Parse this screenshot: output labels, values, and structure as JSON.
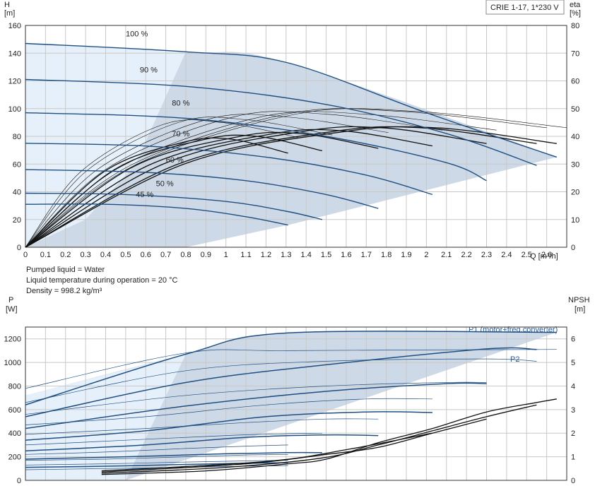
{
  "colors": {
    "zone_dark": "#cdd9e6",
    "zone_light": "#e6f0fa",
    "blue_curve": "#1f4f82",
    "black_curve": "#111111",
    "label_blue": "#2a5a96",
    "grid": "#c8c8c8"
  },
  "chart_data": [
    {
      "type": "line",
      "name": "head-efficiency",
      "model_label": "CRIE 1-17, 1*230 V",
      "ylabel_left": "H",
      "ylabel_left_unit": "[m]",
      "ylabel_right": "eta",
      "ylabel_right_unit": "[%]",
      "xlabel": "Q [m³/h]",
      "xlim": [
        0,
        2.7
      ],
      "ylim": [
        0,
        160
      ],
      "ylim_right": [
        0,
        80
      ],
      "x_ticks": [
        0,
        0.1,
        0.2,
        0.3,
        0.4,
        0.5,
        0.6,
        0.7,
        0.8,
        0.9,
        1.0,
        1.1,
        1.2,
        1.3,
        1.4,
        1.5,
        1.6,
        1.7,
        1.8,
        1.9,
        2.0,
        2.1,
        2.2,
        2.3,
        2.4,
        2.5,
        2.6
      ],
      "y_ticks": [
        0,
        20,
        40,
        60,
        80,
        100,
        120,
        140,
        160
      ],
      "y_ticks_right": [
        0,
        10,
        20,
        30,
        40,
        50,
        60,
        70,
        80
      ],
      "grid": true,
      "operating_zone": {
        "top": [
          [
            0,
            147
          ],
          [
            0.8,
            141
          ],
          [
            1.31,
            133
          ],
          [
            2.65,
            65
          ]
        ],
        "bottom": [
          [
            1.31,
            16
          ],
          [
            2.65,
            65
          ]
        ],
        "light_until_x": 0.8
      },
      "speed_curves": [
        {
          "label": "100 %",
          "points": [
            [
              0,
              147
            ],
            [
              0.8,
              141
            ],
            [
              1.31,
              133
            ],
            [
              2.0,
              97
            ],
            [
              2.65,
              65
            ]
          ]
        },
        {
          "label": "90 %",
          "points": [
            [
              0,
              121
            ],
            [
              0.8,
              116
            ],
            [
              1.5,
              103
            ],
            [
              2.1,
              82
            ],
            [
              2.55,
              59
            ]
          ]
        },
        {
          "label": "80 %",
          "points": [
            [
              0,
              97
            ],
            [
              0.8,
              93
            ],
            [
              1.5,
              80
            ],
            [
              2.1,
              61
            ],
            [
              2.3,
              48
            ]
          ]
        },
        {
          "label": "70 %",
          "points": [
            [
              0,
              75
            ],
            [
              0.6,
              73
            ],
            [
              1.2,
              65
            ],
            [
              1.7,
              52
            ],
            [
              2.03,
              38
            ]
          ]
        },
        {
          "label": "60 %",
          "points": [
            [
              0,
              56
            ],
            [
              0.6,
              54
            ],
            [
              1.1,
              48
            ],
            [
              1.5,
              38
            ],
            [
              1.76,
              28
            ]
          ]
        },
        {
          "label": "50 %",
          "points": [
            [
              0,
              39
            ],
            [
              0.5,
              38
            ],
            [
              1.0,
              33
            ],
            [
              1.3,
              26
            ],
            [
              1.48,
              20
            ]
          ]
        },
        {
          "label": "45 %",
          "points": [
            [
              0,
              31
            ],
            [
              0.4,
              31
            ],
            [
              0.8,
              28
            ],
            [
              1.1,
              22
            ],
            [
              1.31,
              16
            ]
          ]
        }
      ],
      "efficiency_curves_bold_peak_eta": [
        43,
        43,
        43,
        42,
        41,
        40,
        39
      ],
      "efficiency_curves_thin_peak_eta": [
        49,
        49,
        48,
        48,
        47,
        46,
        45
      ]
    },
    {
      "type": "line",
      "name": "power-npsh",
      "info_lines": [
        "Pumped liquid = Water",
        "Liquid temperature during operation = 20 °C",
        "Density = 998.2 kg/m³"
      ],
      "ylabel_left": "P",
      "ylabel_left_unit": "[W]",
      "ylabel_right": "NPSH",
      "ylabel_right_unit": "[m]",
      "ylim": [
        0,
        1300
      ],
      "ylim_right": [
        0,
        6.5
      ],
      "y_ticks": [
        0,
        200,
        400,
        600,
        800,
        1000,
        1200
      ],
      "y_ticks_right": [
        0,
        1,
        2,
        3,
        4,
        5,
        6
      ],
      "grid": true,
      "series_labels": {
        "p1": "P1 (motor+freq.converter)",
        "p2": "P2"
      },
      "p1_curves": [
        [
          [
            0,
            640
          ],
          [
            0.8,
            1070
          ],
          [
            1.31,
            1250
          ],
          [
            2.65,
            1255
          ]
        ],
        [
          [
            0,
            540
          ],
          [
            0.8,
            830
          ],
          [
            1.5,
            980
          ],
          [
            2.3,
            1115
          ],
          [
            2.55,
            1110
          ]
        ],
        [
          [
            0,
            440
          ],
          [
            0.8,
            630
          ],
          [
            1.5,
            755
          ],
          [
            2.1,
            820
          ],
          [
            2.3,
            820
          ]
        ],
        [
          [
            0,
            340
          ],
          [
            0.6,
            420
          ],
          [
            1.2,
            540
          ],
          [
            1.7,
            580
          ],
          [
            2.03,
            575
          ]
        ],
        [
          [
            0,
            250
          ],
          [
            0.6,
            300
          ],
          [
            1.1,
            365
          ],
          [
            1.5,
            385
          ],
          [
            1.76,
            380
          ]
        ],
        [
          [
            0,
            180
          ],
          [
            0.5,
            200
          ],
          [
            1.0,
            225
          ],
          [
            1.3,
            235
          ],
          [
            1.48,
            235
          ]
        ],
        [
          [
            0,
            110
          ],
          [
            0.4,
            120
          ],
          [
            0.8,
            135
          ],
          [
            1.1,
            145
          ],
          [
            1.31,
            150
          ]
        ]
      ],
      "p2_curves": [
        [
          [
            0,
            780
          ],
          [
            0.8,
            1080
          ],
          [
            1.31,
            1100
          ],
          [
            2.65,
            1110
          ]
        ],
        [
          [
            0,
            660
          ],
          [
            0.8,
            930
          ],
          [
            1.5,
            1010
          ],
          [
            2.3,
            1030
          ],
          [
            2.55,
            1010
          ]
        ],
        [
          [
            0,
            560
          ],
          [
            0.8,
            720
          ],
          [
            1.5,
            800
          ],
          [
            2.1,
            830
          ],
          [
            2.3,
            830
          ]
        ],
        [
          [
            0,
            470
          ],
          [
            0.6,
            540
          ],
          [
            1.2,
            640
          ],
          [
            1.7,
            690
          ],
          [
            2.03,
            690
          ]
        ],
        [
          [
            0,
            390
          ],
          [
            0.6,
            440
          ],
          [
            1.1,
            490
          ],
          [
            1.5,
            520
          ],
          [
            1.76,
            520
          ]
        ],
        [
          [
            0,
            300
          ],
          [
            0.5,
            340
          ],
          [
            1.0,
            380
          ],
          [
            1.3,
            395
          ],
          [
            1.48,
            400
          ]
        ],
        [
          [
            0,
            220
          ],
          [
            0.4,
            240
          ],
          [
            0.8,
            270
          ],
          [
            1.1,
            290
          ],
          [
            1.31,
            300
          ]
        ],
        [
          [
            0,
            170
          ],
          [
            0.4,
            180
          ],
          [
            0.8,
            200
          ],
          [
            1.1,
            215
          ],
          [
            1.31,
            220
          ]
        ],
        [
          [
            0,
            130
          ],
          [
            0.4,
            140
          ],
          [
            0.8,
            155
          ],
          [
            1.1,
            165
          ],
          [
            1.31,
            170
          ]
        ],
        [
          [
            0,
            90
          ],
          [
            0.4,
            100
          ],
          [
            0.8,
            110
          ],
          [
            1.1,
            120
          ],
          [
            1.31,
            125
          ]
        ]
      ],
      "npsh_curves": [
        [
          [
            0.38,
            0.25
          ],
          [
            0.9,
            0.4
          ],
          [
            1.31,
            0.7
          ],
          [
            1.5,
            0.9
          ],
          [
            1.76,
            1.6
          ],
          [
            2.03,
            2.2
          ],
          [
            2.3,
            2.9
          ],
          [
            2.55,
            3.3
          ],
          [
            2.65,
            3.45
          ]
        ],
        [
          [
            0.38,
            0.3
          ],
          [
            1.0,
            0.55
          ],
          [
            1.48,
            0.95
          ],
          [
            1.76,
            1.5
          ],
          [
            2.03,
            2.1
          ],
          [
            2.3,
            2.7
          ],
          [
            2.55,
            3.2
          ]
        ],
        [
          [
            0.38,
            0.35
          ],
          [
            1.1,
            0.7
          ],
          [
            1.5,
            1.1
          ],
          [
            1.76,
            1.4
          ],
          [
            2.03,
            2.0
          ],
          [
            2.3,
            2.6
          ]
        ],
        [
          [
            0.38,
            0.4
          ],
          [
            1.2,
            0.8
          ],
          [
            1.6,
            1.3
          ],
          [
            2.03,
            2.0
          ]
        ]
      ],
      "operating_zone": {
        "top": [
          [
            0,
            720
          ],
          [
            0.8,
            1070
          ],
          [
            1.31,
            1250
          ],
          [
            2.65,
            1255
          ]
        ],
        "bottom": [
          [
            0.5,
            0
          ],
          [
            2.65,
            1255
          ]
        ],
        "light_until_x": 0.8
      }
    }
  ]
}
